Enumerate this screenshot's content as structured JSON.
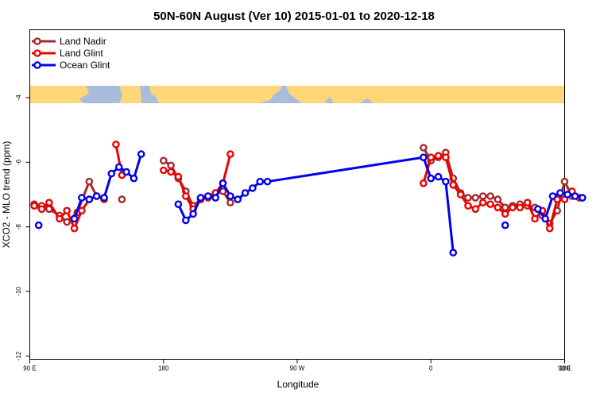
{
  "chart_data": {
    "type": "line",
    "title": "50N-60N August (Ver 10)   2015-01-01 to 2020-12-18",
    "xlabel": "Longitude",
    "ylabel": "XCO2 - MLO trend (ppm)",
    "xlim": [
      90,
      450
    ],
    "ylim": [
      -12.1,
      -1.9
    ],
    "x_ticks": [
      {
        "value": 90,
        "label": "90 E"
      },
      {
        "value": 180,
        "label": "180"
      },
      {
        "value": 270,
        "label": "90 W"
      },
      {
        "value": 360,
        "label": "0"
      },
      {
        "value": 450,
        "label": "90 E"
      },
      {
        "value": 540,
        "label": "180"
      }
    ],
    "y_ticks": [
      {
        "value": -4,
        "label": "-4"
      },
      {
        "value": -6,
        "label": "-6"
      },
      {
        "value": -8,
        "label": "-8"
      },
      {
        "value": -10,
        "label": "-10"
      },
      {
        "value": -12,
        "label": "-12"
      }
    ],
    "legend_position": "top-left",
    "grid": false,
    "map_strip": {
      "y_top": -3.75,
      "y_bottom": -4.3,
      "land_color": "#ffd778",
      "ocean_color": "#a8bcdc"
    },
    "series": [
      {
        "name": "Land Nadir",
        "color": "#a52a2a",
        "points": [
          [
            93,
            -7.3
          ],
          [
            98,
            -7.35
          ],
          [
            103,
            -7.45
          ],
          [
            110,
            -7.65
          ],
          [
            115,
            -7.85
          ],
          [
            122,
            -7.55
          ],
          [
            130,
            -6.6
          ],
          [
            135,
            -7.05
          ],
          [
            140,
            -7.1
          ],
          [
            null,
            null
          ],
          [
            152,
            -7.15
          ],
          [
            null,
            null
          ],
          [
            180,
            -5.95
          ],
          [
            185,
            -6.1
          ],
          [
            190,
            -6.5
          ],
          [
            195,
            -6.9
          ],
          [
            200,
            -7.35
          ],
          [
            205,
            -7.15
          ],
          [
            210,
            -7.1
          ],
          [
            215,
            -6.95
          ],
          [
            220,
            -6.9
          ],
          [
            225,
            -7.25
          ],
          [
            null,
            null
          ],
          [
            355,
            -5.55
          ],
          [
            360,
            -5.95
          ],
          [
            365,
            -5.85
          ],
          [
            370,
            -5.7
          ],
          [
            375,
            -6.5
          ],
          [
            380,
            -6.95
          ],
          [
            385,
            -7.1
          ],
          [
            390,
            -7.1
          ],
          [
            395,
            -7.05
          ],
          [
            400,
            -7.05
          ],
          [
            405,
            -7.15
          ],
          [
            410,
            -7.4
          ],
          [
            415,
            -7.35
          ],
          [
            420,
            -7.3
          ],
          [
            425,
            -7.35
          ],
          [
            430,
            -7.4
          ],
          [
            435,
            -7.65
          ],
          [
            440,
            -7.9
          ],
          [
            445,
            -7.5
          ],
          [
            450,
            -6.6
          ],
          [
            455,
            -7.05
          ],
          [
            460,
            -7.1
          ]
        ]
      },
      {
        "name": "Land Glint",
        "color": "#ee0000",
        "points": [
          [
            93,
            -7.35
          ],
          [
            98,
            -7.45
          ],
          [
            103,
            -7.25
          ],
          [
            110,
            -7.75
          ],
          [
            115,
            -7.5
          ],
          [
            120,
            -8.05
          ],
          [
            125,
            -7.5
          ],
          [
            130,
            -7.15
          ],
          [
            135,
            -7.05
          ],
          [
            140,
            -7.15
          ],
          [
            null,
            null
          ],
          [
            148,
            -5.45
          ],
          [
            152,
            -6.4
          ],
          [
            null,
            null
          ],
          [
            180,
            -6.25
          ],
          [
            185,
            -6.3
          ],
          [
            190,
            -6.45
          ],
          [
            195,
            -7.05
          ],
          [
            200,
            -7.45
          ],
          [
            205,
            -7.15
          ],
          [
            210,
            -7.05
          ],
          [
            215,
            -6.95
          ],
          [
            220,
            -6.65
          ],
          [
            225,
            -5.75
          ],
          [
            null,
            null
          ],
          [
            355,
            -6.65
          ],
          [
            360,
            -5.85
          ],
          [
            365,
            -5.8
          ],
          [
            370,
            -5.85
          ],
          [
            375,
            -6.7
          ],
          [
            380,
            -7.0
          ],
          [
            385,
            -7.35
          ],
          [
            390,
            -7.45
          ],
          [
            395,
            -7.25
          ],
          [
            400,
            -7.3
          ],
          [
            405,
            -7.4
          ],
          [
            410,
            -7.6
          ],
          [
            415,
            -7.4
          ],
          [
            420,
            -7.4
          ],
          [
            425,
            -7.25
          ],
          [
            430,
            -7.75
          ],
          [
            435,
            -7.5
          ],
          [
            440,
            -8.05
          ],
          [
            445,
            -7.15
          ],
          [
            450,
            -7.15
          ],
          [
            455,
            -6.9
          ],
          [
            460,
            -7.1
          ]
        ]
      },
      {
        "name": "Ocean Glint",
        "color": "#0000ee",
        "points": [
          [
            96,
            -7.95
          ],
          [
            null,
            null
          ],
          [
            120,
            -7.75
          ],
          [
            125,
            -7.1
          ],
          [
            130,
            -7.15
          ],
          [
            135,
            -7.05
          ],
          [
            140,
            -7.1
          ],
          [
            145,
            -6.35
          ],
          [
            150,
            -6.15
          ],
          [
            155,
            -6.3
          ],
          [
            160,
            -6.5
          ],
          [
            165,
            -5.75
          ],
          [
            null,
            null
          ],
          [
            190,
            -7.3
          ],
          [
            195,
            -7.8
          ],
          [
            200,
            -7.6
          ],
          [
            205,
            -7.1
          ],
          [
            210,
            -7.05
          ],
          [
            215,
            -7.1
          ],
          [
            220,
            -6.65
          ],
          [
            225,
            -7.05
          ],
          [
            230,
            -7.15
          ],
          [
            235,
            -6.95
          ],
          [
            240,
            -6.8
          ],
          [
            245,
            -6.6
          ],
          [
            250,
            -6.6
          ],
          [
            355,
            -5.85
          ],
          [
            360,
            -6.5
          ],
          [
            365,
            -6.45
          ],
          [
            370,
            -6.6
          ],
          [
            375,
            -8.8
          ],
          [
            null,
            null
          ],
          [
            410,
            -7.95
          ],
          [
            null,
            null
          ],
          [
            432,
            -7.45
          ],
          [
            437,
            -7.75
          ],
          [
            442,
            -7.05
          ],
          [
            447,
            -6.95
          ],
          [
            452,
            -7.0
          ],
          [
            457,
            -7.05
          ],
          [
            462,
            -7.1
          ]
        ]
      }
    ]
  }
}
